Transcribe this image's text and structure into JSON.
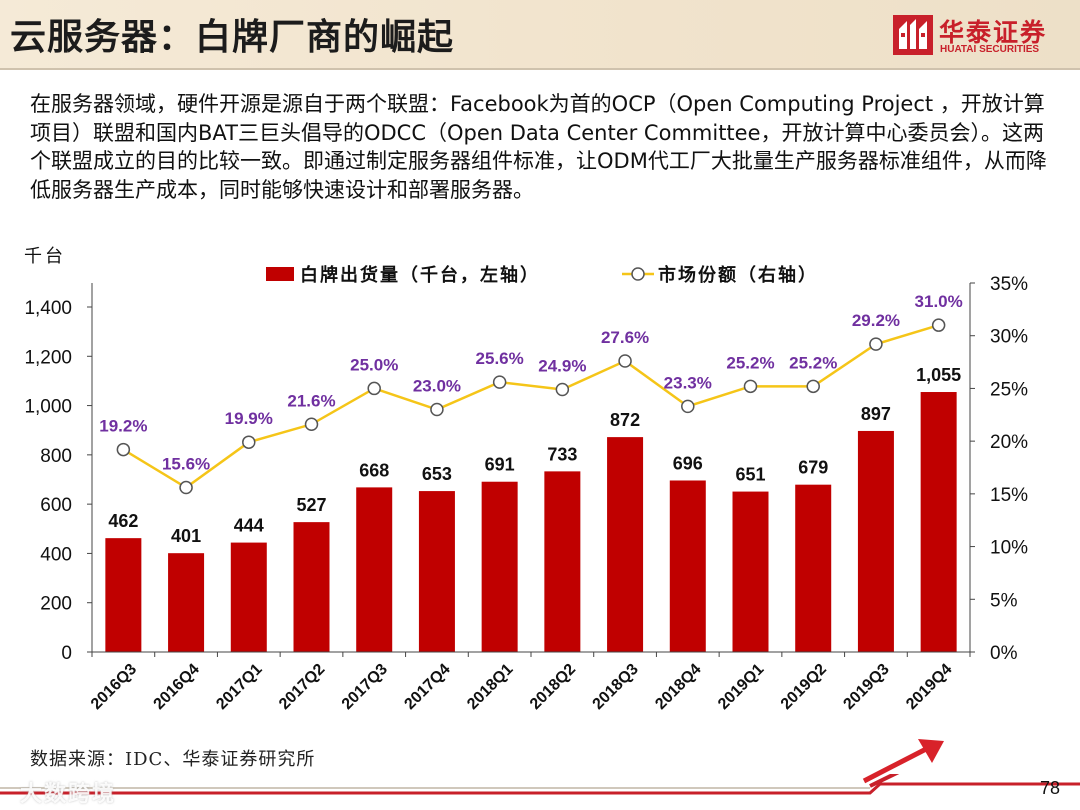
{
  "header": {
    "title": "云服务器：白牌厂商的崛起",
    "logo_cn": "华泰证券",
    "logo_en": "HUATAI SECURITIES"
  },
  "intro": "在服务器领域，硬件开源是源自于两个联盟：Facebook为首的OCP（Open Computing Project ，开放计算项目）联盟和国内BAT三巨头倡导的ODCC（Open Data Center Committee，开放计算中心委员会）。这两个联盟成立的目的比较一致。即通过制定服务器组件标准，让ODM代工厂大批量生产服务器标准组件，从而降低服务器生产成本，同时能够快速设计和部署服务器。",
  "chart_data": {
    "type": "bar",
    "y_unit_label": "千台",
    "categories": [
      "2016Q3",
      "2016Q4",
      "2017Q1",
      "2017Q2",
      "2017Q3",
      "2017Q4",
      "2018Q1",
      "2018Q2",
      "2018Q3",
      "2018Q4",
      "2019Q1",
      "2019Q2",
      "2019Q3",
      "2019Q4"
    ],
    "series": [
      {
        "name": "白牌出货量（千台，左轴）",
        "kind": "bar",
        "axis": "left",
        "color": "#c00000",
        "values": [
          462,
          401,
          444,
          527,
          668,
          653,
          691,
          733,
          872,
          696,
          651,
          679,
          897,
          1055
        ],
        "labels": [
          "462",
          "401",
          "444",
          "527",
          "668",
          "653",
          "691",
          "733",
          "872",
          "696",
          "651",
          "679",
          "897",
          "1,055"
        ]
      },
      {
        "name": "市场份额（右轴）",
        "kind": "line",
        "axis": "right",
        "color": "#f5c518",
        "label_color": "#7030a0",
        "values": [
          19.2,
          15.6,
          19.9,
          21.6,
          25.0,
          23.0,
          25.6,
          24.9,
          27.6,
          23.3,
          25.2,
          25.2,
          29.2,
          31.0
        ],
        "labels": [
          "19.2%",
          "15.6%",
          "19.9%",
          "21.6%",
          "25.0%",
          "23.0%",
          "25.6%",
          "24.9%",
          "27.6%",
          "23.3%",
          "25.2%",
          "25.2%",
          "29.2%",
          "31.0%"
        ]
      }
    ],
    "ylim_left": [
      0,
      1400
    ],
    "yticks_left": [
      "0",
      "200",
      "400",
      "600",
      "800",
      "1,000",
      "1,200",
      "1,400"
    ],
    "ylim_right": [
      0,
      35
    ],
    "yticks_right": [
      "0%",
      "5%",
      "10%",
      "15%",
      "20%",
      "25%",
      "30%",
      "35%"
    ],
    "legend_position": "top-center"
  },
  "footer": {
    "source": "数据来源：IDC、华泰证券研究所",
    "watermark": "大数跨境",
    "page_number": "78"
  }
}
